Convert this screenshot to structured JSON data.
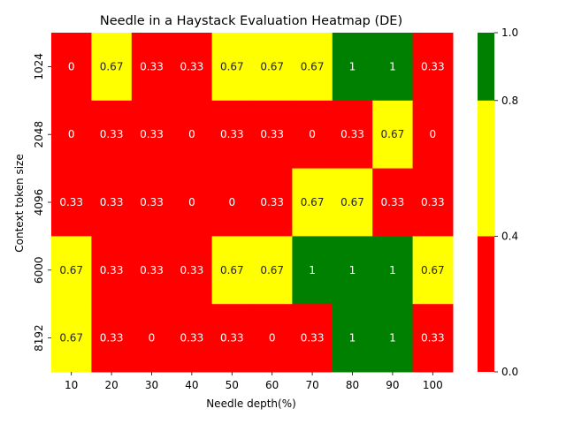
{
  "chart_data": {
    "type": "heatmap",
    "title": "Needle in a Haystack Evaluation Heatmap (DE)",
    "xlabel": "Needle depth(%)",
    "ylabel": "Context token size",
    "x": [
      "10",
      "20",
      "30",
      "40",
      "50",
      "60",
      "70",
      "80",
      "90",
      "100"
    ],
    "y": [
      "1024",
      "2048",
      "4096",
      "6000",
      "8192"
    ],
    "values": [
      [
        0,
        0.67,
        0.33,
        0.33,
        0.67,
        0.67,
        0.67,
        1,
        1,
        0.33
      ],
      [
        0,
        0.33,
        0.33,
        0,
        0.33,
        0.33,
        0,
        0.33,
        0.67,
        0
      ],
      [
        0.33,
        0.33,
        0.33,
        0,
        0,
        0.33,
        0.67,
        0.67,
        0.33,
        0.33
      ],
      [
        0.67,
        0.33,
        0.33,
        0.33,
        0.67,
        0.67,
        1,
        1,
        1,
        0.67
      ],
      [
        0.67,
        0.33,
        0,
        0.33,
        0.33,
        0,
        0.33,
        1,
        1,
        0.33
      ]
    ],
    "colorbar": {
      "bounds": [
        0.0,
        0.4,
        0.8,
        1.0
      ],
      "tick_labels": [
        "0.0",
        "0.4",
        "0.8",
        "1.0"
      ],
      "colors": [
        "#ff0000",
        "#ffff00",
        "#008000"
      ]
    },
    "cell_label_colors": {
      "low": "#ffffff",
      "mid": "#262626",
      "high": "#ffffff"
    }
  }
}
